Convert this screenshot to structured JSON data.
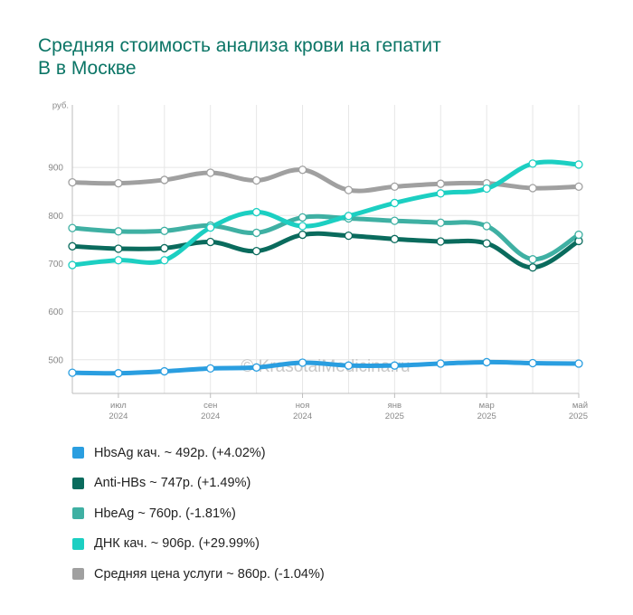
{
  "title": {
    "line1": "Средняя стоимость анализа крови на гепатит",
    "line2": "В в Москве"
  },
  "watermark": "© KrasotaiMedicina.ru",
  "chart_data": {
    "type": "line",
    "yunit": "руб.",
    "ylim": [
      430,
      1030
    ],
    "yticks": [
      500,
      600,
      700,
      800,
      900
    ],
    "xticks": [
      {
        "month": "июл",
        "year": "2024",
        "index": 1
      },
      {
        "month": "сен",
        "year": "2024",
        "index": 3
      },
      {
        "month": "ноя",
        "year": "2024",
        "index": 5
      },
      {
        "month": "янв",
        "year": "2025",
        "index": 7
      },
      {
        "month": "мар",
        "year": "2025",
        "index": 9
      },
      {
        "month": "май",
        "year": "2025",
        "index": 11
      }
    ],
    "months": [
      "июн 2024",
      "июл 2024",
      "авг 2024",
      "сен 2024",
      "окт 2024",
      "ноя 2024",
      "дек 2024",
      "янв 2025",
      "фев 2025",
      "мар 2025",
      "апр 2025",
      "май 2025"
    ],
    "grid": true,
    "legend_position": "bottom",
    "series": [
      {
        "name": "Средняя цена услуги",
        "color": "#a0a0a0",
        "summary": "~ 860р. (-1.04%)",
        "values": [
          869,
          867,
          874,
          889,
          873,
          895,
          853,
          860,
          866,
          867,
          857,
          860
        ]
      },
      {
        "name": "Anti-HBs",
        "color": "#0a6b5d",
        "summary": "~ 747р. (+1.49%)",
        "values": [
          736,
          731,
          732,
          745,
          726,
          760,
          758,
          751,
          746,
          742,
          692,
          747
        ]
      },
      {
        "name": "HbeAg",
        "color": "#3fb0a3",
        "summary": "~ 760р. (-1.81%)",
        "values": [
          774,
          767,
          768,
          779,
          764,
          796,
          794,
          789,
          785,
          778,
          709,
          760
        ]
      },
      {
        "name": "ДНК кач.",
        "color": "#1ccfc2",
        "summary": "~ 906р. (+29.99%)",
        "values": [
          697,
          707,
          707,
          775,
          807,
          778,
          799,
          826,
          846,
          856,
          908,
          906
        ]
      },
      {
        "name": "HbsAg кач.",
        "color": "#2a9ee0",
        "summary": "~ 492р. (+4.02%)",
        "values": [
          473,
          472,
          476,
          482,
          484,
          494,
          488,
          488,
          492,
          495,
          493,
          492
        ]
      }
    ]
  },
  "legend_order": [
    4,
    1,
    2,
    3,
    0
  ]
}
